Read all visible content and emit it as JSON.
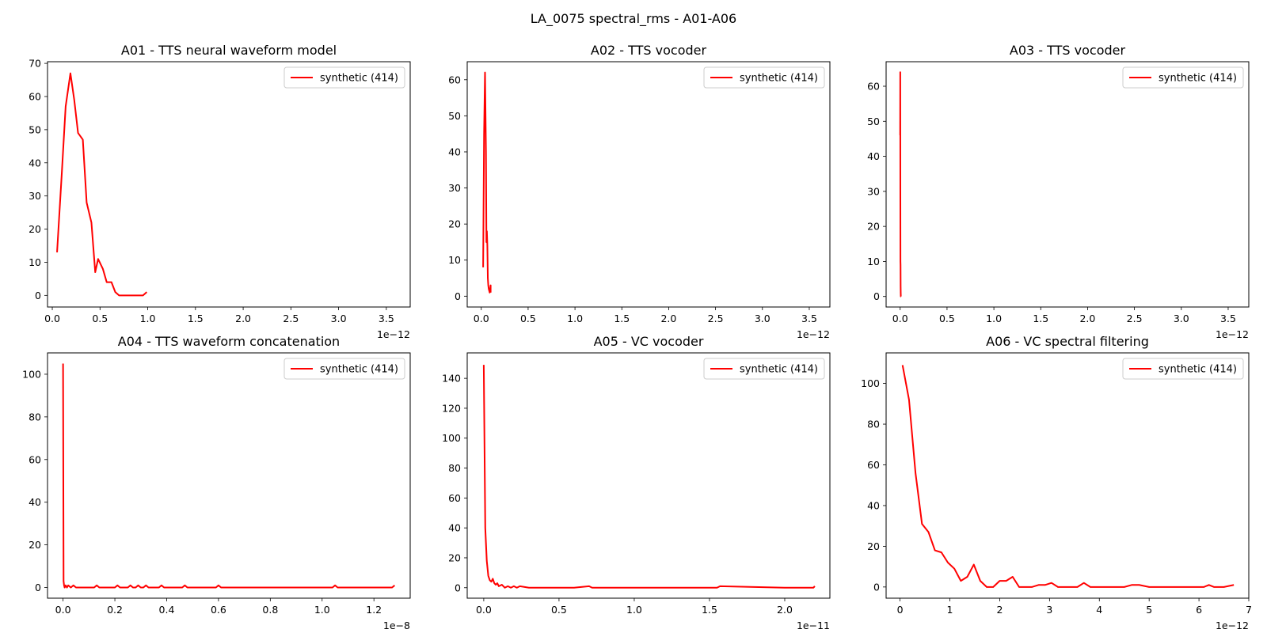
{
  "figure": {
    "title": "LA_0075 spectral_rms - A01-A06"
  },
  "colors": {
    "series": "#ff0000",
    "axes": "#000000",
    "legend_border": "#cccccc",
    "background": "#ffffff"
  },
  "chart_data": [
    {
      "type": "line",
      "title": "A01 - TTS neural waveform model",
      "xlim": [
        -0.05,
        3.75
      ],
      "ylim": [
        -3.5,
        70.5
      ],
      "xticks": [
        0,
        0.5,
        1.0,
        1.5,
        2.0,
        2.5,
        3.0,
        3.5
      ],
      "xtick_labels": [
        "0.0",
        "0.5",
        "1.0",
        "1.5",
        "2.0",
        "2.5",
        "3.0",
        "3.5"
      ],
      "yticks": [
        0,
        10,
        20,
        30,
        40,
        50,
        60,
        70
      ],
      "ytick_labels": [
        "0",
        "10",
        "20",
        "30",
        "40",
        "50",
        "60",
        "70"
      ],
      "x_offset_text": "1e−12",
      "legend": "top-right",
      "series": [
        {
          "name": "synthetic (414)",
          "x": [
            0.05,
            0.1,
            0.14,
            0.19,
            0.23,
            0.27,
            0.32,
            0.36,
            0.41,
            0.45,
            0.48,
            0.53,
            0.57,
            0.62,
            0.66,
            0.7,
            0.75,
            0.8,
            0.85,
            0.9,
            0.95,
            0.99
          ],
          "y": [
            13,
            37,
            57,
            67,
            59,
            49,
            47,
            28,
            22,
            7,
            11,
            8,
            4,
            4,
            1,
            0,
            0,
            0,
            0,
            0,
            0,
            1
          ]
        }
      ]
    },
    {
      "type": "line",
      "title": "A02 - TTS vocoder",
      "xlim": [
        -0.15,
        3.72
      ],
      "ylim": [
        -3,
        65
      ],
      "xticks": [
        0,
        0.5,
        1.0,
        1.5,
        2.0,
        2.5,
        3.0,
        3.5
      ],
      "xtick_labels": [
        "0.0",
        "0.5",
        "1.0",
        "1.5",
        "2.0",
        "2.5",
        "3.0",
        "3.5"
      ],
      "yticks": [
        0,
        10,
        20,
        30,
        40,
        50,
        60
      ],
      "ytick_labels": [
        "0",
        "10",
        "20",
        "30",
        "40",
        "50",
        "60"
      ],
      "x_offset_text": "1e−12",
      "legend": "top-right",
      "series": [
        {
          "name": "synthetic (414)",
          "x": [
            0.02,
            0.03,
            0.04,
            0.05,
            0.055,
            0.06,
            0.065,
            0.07,
            0.075,
            0.08,
            0.09,
            0.1,
            0.1
          ],
          "y": [
            8,
            45,
            62,
            40,
            15,
            18,
            14,
            5,
            3,
            2,
            1,
            3,
            1
          ]
        }
      ]
    },
    {
      "type": "line",
      "title": "A03 - TTS vocoder",
      "xlim": [
        -0.15,
        3.72
      ],
      "ylim": [
        -3,
        67
      ],
      "xticks": [
        0,
        0.5,
        1.0,
        1.5,
        2.0,
        2.5,
        3.0,
        3.5
      ],
      "xtick_labels": [
        "0.0",
        "0.5",
        "1.0",
        "1.5",
        "2.0",
        "2.5",
        "3.0",
        "3.5"
      ],
      "yticks": [
        0,
        10,
        20,
        30,
        40,
        50,
        60
      ],
      "ytick_labels": [
        "0",
        "10",
        "20",
        "30",
        "40",
        "50",
        "60"
      ],
      "x_offset_text": "1e−12",
      "legend": "top-right",
      "series": [
        {
          "name": "synthetic (414)",
          "x": [
            0.0,
            0.001,
            0.002,
            0.003,
            0.004,
            0.005,
            0.006,
            0.007,
            0.008
          ],
          "y": [
            46,
            64,
            30,
            10,
            9,
            3,
            1,
            0,
            0
          ]
        }
      ]
    },
    {
      "type": "line",
      "title": "A04 - TTS waveform concatenation",
      "xlim": [
        -0.06,
        1.34
      ],
      "ylim": [
        -5,
        110
      ],
      "xticks": [
        0,
        0.2,
        0.4,
        0.6,
        0.8,
        1.0,
        1.2
      ],
      "xtick_labels": [
        "0.0",
        "0.2",
        "0.4",
        "0.6",
        "0.8",
        "1.0",
        "1.2"
      ],
      "yticks": [
        0,
        20,
        40,
        60,
        80,
        100
      ],
      "ytick_labels": [
        "0",
        "20",
        "40",
        "60",
        "80",
        "100"
      ],
      "x_offset_text": "1e−8",
      "legend": "top-right",
      "series": [
        {
          "name": "synthetic (414)",
          "x": [
            0.0,
            0.002,
            0.004,
            0.006,
            0.01,
            0.015,
            0.02,
            0.03,
            0.04,
            0.05,
            0.06,
            0.12,
            0.13,
            0.14,
            0.2,
            0.21,
            0.22,
            0.25,
            0.26,
            0.27,
            0.28,
            0.29,
            0.3,
            0.31,
            0.32,
            0.33,
            0.37,
            0.38,
            0.39,
            0.46,
            0.47,
            0.48,
            0.59,
            0.6,
            0.61,
            1.04,
            1.05,
            1.06,
            1.27,
            1.28
          ],
          "y": [
            105,
            3,
            1,
            0,
            1,
            0,
            1,
            0,
            1,
            0,
            0,
            0,
            1,
            0,
            0,
            1,
            0,
            0,
            1,
            0,
            0,
            1,
            0,
            0,
            1,
            0,
            0,
            1,
            0,
            0,
            1,
            0,
            0,
            1,
            0,
            0,
            1,
            0,
            0,
            1
          ]
        }
      ]
    },
    {
      "type": "line",
      "title": "A05 - VC vocoder",
      "xlim": [
        -0.11,
        2.3
      ],
      "ylim": [
        -7,
        157
      ],
      "xticks": [
        0,
        0.5,
        1.0,
        1.5,
        2.0
      ],
      "xtick_labels": [
        "0.0",
        "0.5",
        "1.0",
        "1.5",
        "2.0"
      ],
      "yticks": [
        0,
        20,
        40,
        60,
        80,
        100,
        120,
        140
      ],
      "ytick_labels": [
        "0",
        "20",
        "40",
        "60",
        "80",
        "100",
        "120",
        "140"
      ],
      "x_offset_text": "1e−11",
      "legend": "top-right",
      "series": [
        {
          "name": "synthetic (414)",
          "x": [
            0.0,
            0.01,
            0.02,
            0.03,
            0.04,
            0.05,
            0.06,
            0.07,
            0.08,
            0.09,
            0.1,
            0.12,
            0.14,
            0.16,
            0.18,
            0.2,
            0.22,
            0.24,
            0.3,
            0.6,
            0.7,
            0.72,
            1.0,
            1.55,
            1.57,
            2.0,
            2.19,
            2.2
          ],
          "y": [
            149,
            40,
            18,
            8,
            5,
            4,
            6,
            3,
            2,
            3,
            1,
            2,
            0,
            1,
            0,
            1,
            0,
            1,
            0,
            0,
            1,
            0,
            0,
            0,
            1,
            0,
            0,
            1
          ]
        }
      ]
    },
    {
      "type": "line",
      "title": "A06 - VC spectral filtering",
      "xlim": [
        -0.28,
        7.0
      ],
      "ylim": [
        -5.5,
        115
      ],
      "xticks": [
        0,
        1,
        2,
        3,
        4,
        5,
        6,
        7
      ],
      "xtick_labels": [
        "0",
        "1",
        "2",
        "3",
        "4",
        "5",
        "6",
        "7"
      ],
      "yticks": [
        0,
        20,
        40,
        60,
        80,
        100
      ],
      "ytick_labels": [
        "0",
        "20",
        "40",
        "60",
        "80",
        "100"
      ],
      "x_offset_text": "1e−12",
      "legend": "top-right",
      "series": [
        {
          "name": "synthetic (414)",
          "x": [
            0.05,
            0.18,
            0.31,
            0.44,
            0.57,
            0.7,
            0.83,
            0.96,
            1.09,
            1.22,
            1.35,
            1.48,
            1.61,
            1.74,
            1.87,
            2.0,
            2.13,
            2.26,
            2.39,
            2.52,
            2.65,
            2.78,
            2.91,
            3.04,
            3.17,
            3.3,
            3.43,
            3.56,
            3.69,
            3.82,
            3.95,
            4.1,
            4.3,
            4.5,
            4.65,
            4.8,
            5.0,
            5.5,
            6.0,
            6.1,
            6.2,
            6.3,
            6.5,
            6.7
          ],
          "y": [
            109,
            92,
            56,
            31,
            27,
            18,
            17,
            12,
            9,
            3,
            5,
            11,
            3,
            0,
            0,
            3,
            3,
            5,
            0,
            0,
            0,
            1,
            1,
            2,
            0,
            0,
            0,
            0,
            2,
            0,
            0,
            0,
            0,
            0,
            1,
            1,
            0,
            0,
            0,
            0,
            1,
            0,
            0,
            1
          ]
        }
      ]
    }
  ]
}
